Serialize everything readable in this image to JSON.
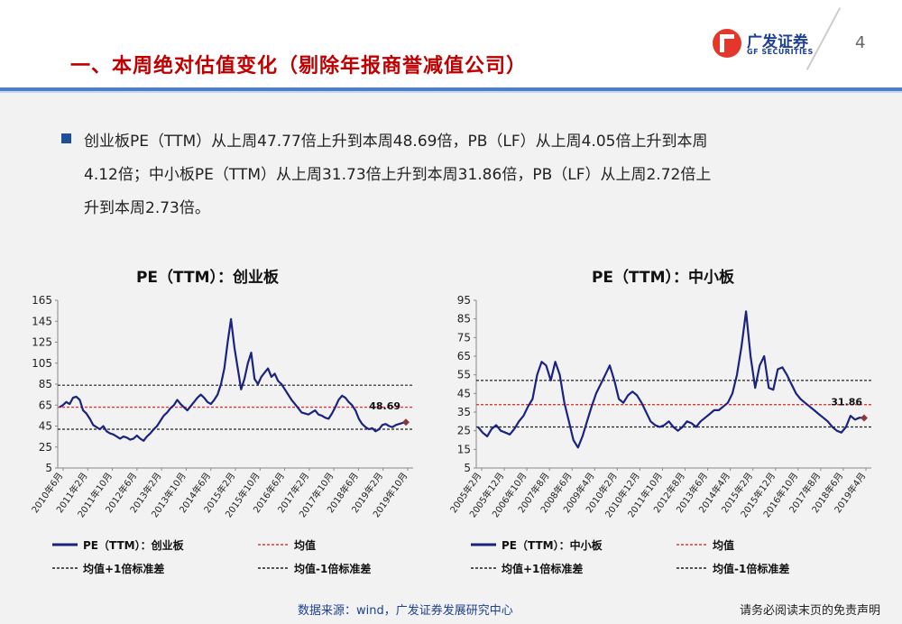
{
  "page": {
    "title": "一、本周绝对估值变化（剔除年报商誉减值公司）",
    "page_number": "4",
    "logo_cn": "广发证券",
    "logo_en": "GF SECURITIES",
    "summary_lines": [
      "创业板PE（TTM）从上周47.77倍上升到本周48.69倍，PB（LF）从上周4.05倍上升到本周",
      "4.12倍；中小板PE（TTM）从上周31.73倍上升到本周31.86倍，PB（LF）从上周2.72倍上",
      "升到本周2.73倍。"
    ],
    "source": "数据来源：wind，广发证券发展研究中心",
    "disclaimer": "请务必阅读末页的免责声明",
    "colors": {
      "accent": "#c00000",
      "brand": "#1d3f94",
      "line": "#1a237e",
      "mean": "#e53935",
      "band": "#222222"
    }
  },
  "chart_data": [
    {
      "type": "line",
      "title": "PE（TTM）：创业板",
      "ylim": [
        5,
        165
      ],
      "yticks": [
        "165",
        "145",
        "125",
        "105",
        "85",
        "65",
        "45",
        "25",
        "5"
      ],
      "xticks": [
        "2010年6月",
        "2011年2月",
        "2011年10月",
        "2012年6月",
        "2013年2月",
        "2013年10月",
        "2014年6月",
        "2015年2月",
        "2015年10月",
        "2016年6月",
        "2017年2月",
        "2017年10月",
        "2018年6月",
        "2019年2月",
        "2019年10月"
      ],
      "series": [
        {
          "name": "PE（TTM）：创业板",
          "values": [
            63,
            65,
            68,
            66,
            72,
            73,
            70,
            60,
            57,
            52,
            46,
            44,
            42,
            45,
            40,
            38,
            37,
            35,
            33,
            35,
            34,
            32,
            33,
            36,
            33,
            31,
            35,
            38,
            42,
            45,
            50,
            55,
            58,
            62,
            65,
            70,
            66,
            63,
            60,
            64,
            68,
            72,
            75,
            72,
            68,
            66,
            70,
            75,
            85,
            100,
            125,
            147,
            120,
            100,
            80,
            90,
            105,
            115,
            90,
            85,
            92,
            96,
            100,
            92,
            95,
            88,
            85,
            80,
            75,
            70,
            66,
            62,
            58,
            57,
            56,
            58,
            60,
            56,
            55,
            53,
            52,
            57,
            63,
            70,
            74,
            72,
            68,
            65,
            60,
            52,
            47,
            44,
            42,
            43,
            40,
            42,
            46,
            47,
            45,
            44,
            46,
            47,
            48,
            48.69
          ]
        },
        {
          "name": "均值",
          "values": [
            63,
            63
          ]
        },
        {
          "name": "均值+1倍标准差",
          "values": [
            84,
            84
          ]
        },
        {
          "name": "均值-1倍标准差",
          "values": [
            42,
            42
          ]
        }
      ],
      "end_label": "48.69",
      "legend": [
        "PE（TTM）：创业板",
        "均值",
        "均值+1倍标准差",
        "均值-1倍标准差"
      ]
    },
    {
      "type": "line",
      "title": "PE（TTM）：中小板",
      "ylim": [
        5,
        95
      ],
      "yticks": [
        "95",
        "85",
        "75",
        "65",
        "55",
        "45",
        "35",
        "25",
        "15",
        "5"
      ],
      "xticks": [
        "2005年2月",
        "2005年12月",
        "2006年10月",
        "2007年8月",
        "2008年6月",
        "2009年4月",
        "2010年2月",
        "2010年12月",
        "2011年10月",
        "2012年8月",
        "2013年6月",
        "2014年4月",
        "2015年2月",
        "2015年12月",
        "2016年10月",
        "2017年8月",
        "2018年6月",
        "2019年4月"
      ],
      "series": [
        {
          "name": "PE（TTM）：中小板",
          "values": [
            27,
            24,
            22,
            26,
            28,
            25,
            24,
            23,
            26,
            30,
            33,
            38,
            42,
            55,
            62,
            60,
            52,
            62,
            55,
            40,
            30,
            20,
            16,
            22,
            30,
            38,
            45,
            50,
            55,
            60,
            52,
            42,
            40,
            44,
            46,
            44,
            40,
            35,
            30,
            28,
            27,
            28,
            30,
            27,
            25,
            27,
            30,
            29,
            27,
            30,
            32,
            34,
            36,
            36,
            38,
            40,
            45,
            55,
            70,
            89,
            65,
            48,
            60,
            65,
            48,
            47,
            58,
            59,
            55,
            50,
            45,
            42,
            40,
            38,
            36,
            34,
            32,
            30,
            27,
            25,
            24,
            27,
            33,
            31,
            32,
            31.86
          ]
        },
        {
          "name": "均值",
          "values": [
            39,
            39
          ]
        },
        {
          "name": "均值+1倍标准差",
          "values": [
            52,
            52
          ]
        },
        {
          "name": "均值-1倍标准差",
          "values": [
            27,
            27
          ]
        }
      ],
      "end_label": "31.86",
      "legend": [
        "PE（TTM）：中小板",
        "均值",
        "均值+1倍标准差",
        "均值-1倍标准差"
      ]
    }
  ]
}
